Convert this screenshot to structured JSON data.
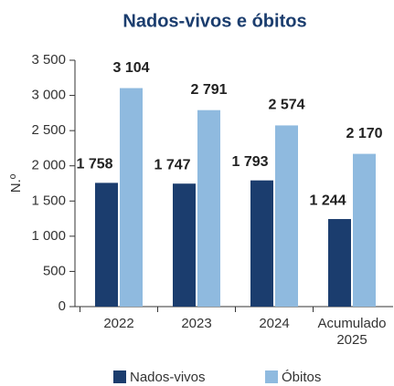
{
  "chart_data": {
    "type": "bar",
    "title": "Nados-vivos e óbitos",
    "y_label": "N.º",
    "categories": [
      "2022",
      "2023",
      "2024",
      "Acumulado 2025"
    ],
    "series": [
      {
        "name": "Nados-vivos",
        "color": "#1b3d6e",
        "values": [
          1758,
          1747,
          1793,
          1244
        ],
        "value_labels": [
          "1 758",
          "1 747",
          "1 793",
          "1 244"
        ]
      },
      {
        "name": "Óbitos",
        "color": "#8fbadf",
        "values": [
          3104,
          2791,
          2574,
          2170
        ],
        "value_labels": [
          "3 104",
          "2 791",
          "2 574",
          "2 170"
        ]
      }
    ],
    "ylim": [
      0,
      3500
    ],
    "yticks": [
      0,
      500,
      {
        "value": 1000,
        "label": "1 000"
      },
      {
        "value": 1500,
        "label": "1 500"
      },
      {
        "value": 2000,
        "label": "2 000"
      },
      {
        "value": 2500,
        "label": "2 500"
      },
      {
        "value": 3000,
        "label": "3 000"
      },
      {
        "value": 3500,
        "label": "3 500"
      }
    ],
    "grid": false,
    "legend": "bottom"
  }
}
